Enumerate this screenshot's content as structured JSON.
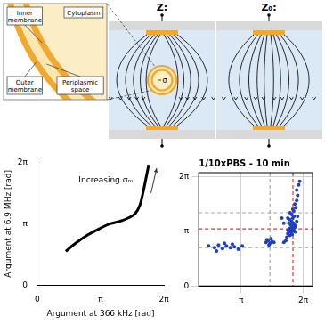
{
  "diagram": {
    "inset_labels": [
      "Inner membrane",
      "Cytoplasm",
      "Outer membrane",
      "Periplasmic space"
    ],
    "panels": [
      "Z:",
      "Z₀:"
    ],
    "cell_label": "σ"
  },
  "chart_data": [
    {
      "type": "line",
      "x_label": "Argument at 366 kHz [rad]",
      "y_label": "Argument at 6.9 MHz [rad]",
      "annotation": "Increasing σₘ",
      "x": [
        1.414,
        1.885,
        2.513,
        3.142,
        3.613,
        4.084,
        4.555,
        4.869,
        5.089,
        5.246,
        5.372,
        5.466,
        5.529
      ],
      "values": [
        1.728,
        2.136,
        2.576,
        2.922,
        3.142,
        3.267,
        3.456,
        3.676,
        4.084,
        4.712,
        5.341,
        5.812,
        6.158
      ],
      "color": "#000000",
      "xlim": [
        0,
        6.28319
      ],
      "ylim": [
        0,
        6.28319
      ],
      "xticks": [
        0,
        {
          "value": 3.14159,
          "label": "π"
        },
        {
          "value": 6.28319,
          "label": "2π"
        }
      ],
      "yticks": [
        0,
        {
          "value": 3.14159,
          "label": "π"
        },
        {
          "value": 6.28319,
          "label": "2π"
        }
      ],
      "grid": false
    },
    {
      "type": "scatter",
      "title": "1/10xPBS - 10 min",
      "x": [
        5.6,
        5.7,
        5.75,
        5.8,
        5.72,
        5.65,
        5.78,
        5.85,
        5.7,
        5.6,
        5.75,
        5.82,
        5.7,
        5.8,
        5.9,
        5.85,
        5.95,
        6.0,
        5.95,
        6.05,
        6.1,
        5.55,
        5.5,
        5.6,
        5.45,
        5.4,
        5.3,
        5.5,
        5.65,
        5.9,
        5.95,
        5.55,
        5.5,
        5.62,
        5.75,
        5.88,
        5.68,
        5.8,
        5.72,
        6.0,
        5.3,
        5.2,
        4.4,
        4.5,
        4.6,
        4.7,
        4.55,
        4.65,
        4.8,
        4.45,
        1.5,
        1.8,
        2.0,
        2.2,
        2.4,
        2.6,
        2.8,
        3.0,
        2.3,
        1.9,
        2.7,
        3.2
      ],
      "values": [
        3.3,
        3.25,
        3.35,
        3.3,
        3.45,
        3.5,
        3.6,
        3.5,
        3.7,
        3.8,
        3.9,
        4.0,
        4.1,
        4.3,
        4.5,
        4.7,
        4.9,
        5.2,
        5.5,
        5.8,
        6.0,
        3.1,
        3.0,
        2.9,
        2.8,
        2.6,
        2.5,
        3.2,
        3.15,
        3.4,
        3.7,
        3.6,
        3.9,
        4.2,
        4.4,
        3.1,
        3.05,
        3.15,
        2.95,
        4.0,
        3.6,
        3.9,
        2.5,
        2.6,
        2.45,
        2.55,
        2.35,
        2.7,
        2.5,
        2.65,
        2.3,
        2.2,
        2.35,
        2.15,
        2.3,
        2.2,
        2.25,
        2.1,
        2.45,
        2.0,
        2.4,
        2.3
      ],
      "color": "#1f3fbf",
      "reference_lines": [
        {
          "axis": "x",
          "value": 5.76,
          "color": "#e8332a",
          "line_style": "dashed"
        },
        {
          "axis": "y",
          "value": 3.27,
          "color": "#e8332a",
          "line_style": "dashed"
        },
        {
          "axis": "x",
          "value": 4.6,
          "color": "#a6a6a6",
          "line_style": "dashed"
        },
        {
          "axis": "y",
          "value": 4.2,
          "color": "#a6a6a6",
          "line_style": "dashed"
        },
        {
          "axis": "y",
          "value": 2.2,
          "color": "#a6a6a6",
          "line_style": "dashed"
        }
      ],
      "xlim": [
        1.0,
        6.75
      ],
      "ylim": [
        0,
        6.5
      ],
      "xticks": [
        {
          "value": 3.14159,
          "label": "π"
        },
        {
          "value": 6.28319,
          "label": "2π"
        }
      ],
      "yticks": [
        0,
        {
          "value": 3.14159,
          "label": "π"
        },
        {
          "value": 6.28319,
          "label": "2π"
        }
      ],
      "grid": true
    }
  ]
}
